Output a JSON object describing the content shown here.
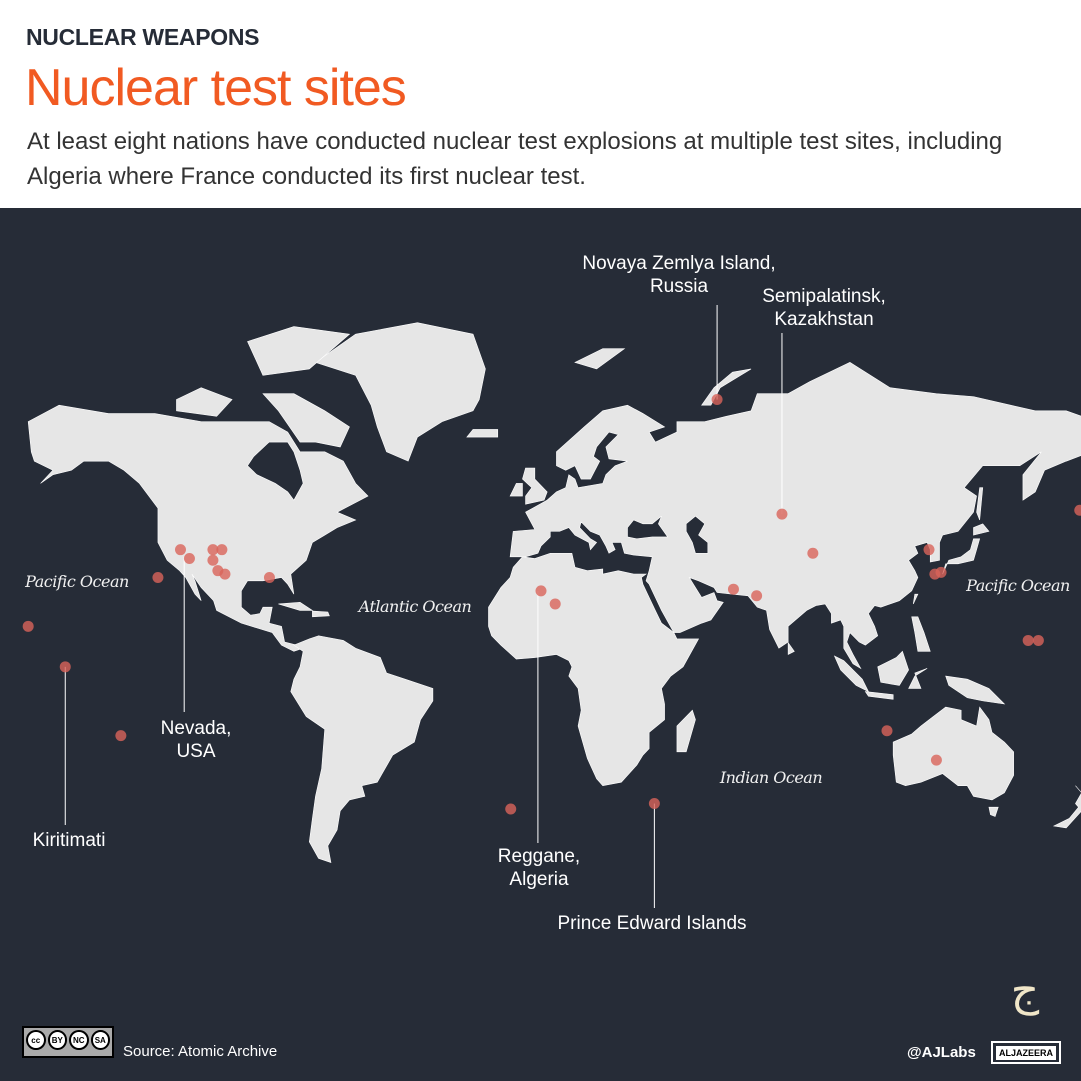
{
  "header": {
    "kicker": "NUCLEAR WEAPONS",
    "title": "Nuclear test sites",
    "subtitle": "At least eight nations have conducted nuclear test explosions at multiple test sites, including Algeria where France conducted its first nuclear test."
  },
  "colors": {
    "background": "#262c37",
    "land": "#e6e6e6",
    "site": "#d9645a",
    "title": "#f15a22"
  },
  "labels": [
    {
      "id": "novaya",
      "line1": "Novaya Zemlya Island,",
      "line2": "Russia",
      "lon": 57,
      "lat": 72
    },
    {
      "id": "semipalatinsk",
      "line1": "Semipalatinsk,",
      "line2": "Kazakhstan",
      "lon": 78,
      "lat": 47.5
    },
    {
      "id": "nevada",
      "line1": "Nevada,",
      "line2": "USA",
      "lon": -115.5,
      "lat": 36
    },
    {
      "id": "kiritimati",
      "line1": "Kiritimati",
      "line2": "",
      "lon": -154,
      "lat": 2
    },
    {
      "id": "reggane",
      "line1": "Reggane,",
      "line2": "Algeria",
      "lon": -1,
      "lat": 26
    },
    {
      "id": "prince-edward",
      "line1": "Prince Edward Islands",
      "line2": "",
      "lon": 36.7,
      "lat": -40
    }
  ],
  "oceans": [
    "Pacific Ocean",
    "Atlantic Ocean",
    "Pacific Ocean",
    "Indian Ocean"
  ],
  "sites": [
    [
      -116.7,
      38
    ],
    [
      -113.8,
      35.5
    ],
    [
      -106.2,
      38
    ],
    [
      -103.3,
      38
    ],
    [
      -106.2,
      35
    ],
    [
      -104.6,
      32
    ],
    [
      -102.3,
      31
    ],
    [
      -87.9,
      30
    ],
    [
      -124,
      30
    ],
    [
      -166,
      15
    ],
    [
      -154,
      2
    ],
    [
      -136,
      -20
    ],
    [
      174.4,
      48.5
    ],
    [
      57,
      72
    ],
    [
      78,
      47.5
    ],
    [
      88,
      37
    ],
    [
      0,
      26
    ],
    [
      4.6,
      22
    ],
    [
      62.3,
      26.5
    ],
    [
      69.8,
      24.5
    ],
    [
      125.6,
      38
    ],
    [
      127.5,
      31
    ],
    [
      129.5,
      31.5
    ],
    [
      157.7,
      10.5
    ],
    [
      161,
      10.5
    ],
    [
      112,
      -18.5
    ],
    [
      128,
      -27.5
    ],
    [
      36.7,
      -40
    ],
    [
      -9.8,
      -41.5
    ]
  ],
  "footer": {
    "license": [
      "BY",
      "NC",
      "SA"
    ],
    "source": "Source: Atomic Archive",
    "handle": "@AJLabs",
    "brand": "ALJAZEERA"
  }
}
